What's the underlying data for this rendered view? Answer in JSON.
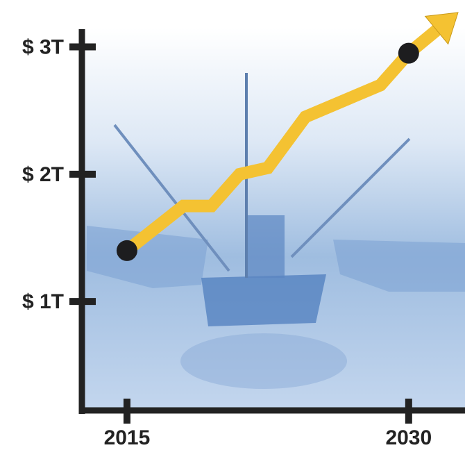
{
  "chart_data": {
    "type": "line",
    "x": [
      2015,
      2018,
      2019.5,
      2021,
      2022.5,
      2024.5,
      2028.5,
      2030
    ],
    "series": [
      {
        "color": "#f4c232",
        "values": [
          1.4,
          1.75,
          1.75,
          2.0,
          2.05,
          2.45,
          2.7,
          2.95
        ]
      }
    ],
    "xlim": [
      2012.6,
      2033
    ],
    "xticks": [
      2015,
      2030
    ],
    "ylim": [
      0.15,
      3.15
    ],
    "yticks": [
      {
        "value": 1,
        "label": "$ 1T"
      },
      {
        "value": 2,
        "label": "$ 2T"
      },
      {
        "value": 3,
        "label": "$ 3T"
      }
    ]
  }
}
